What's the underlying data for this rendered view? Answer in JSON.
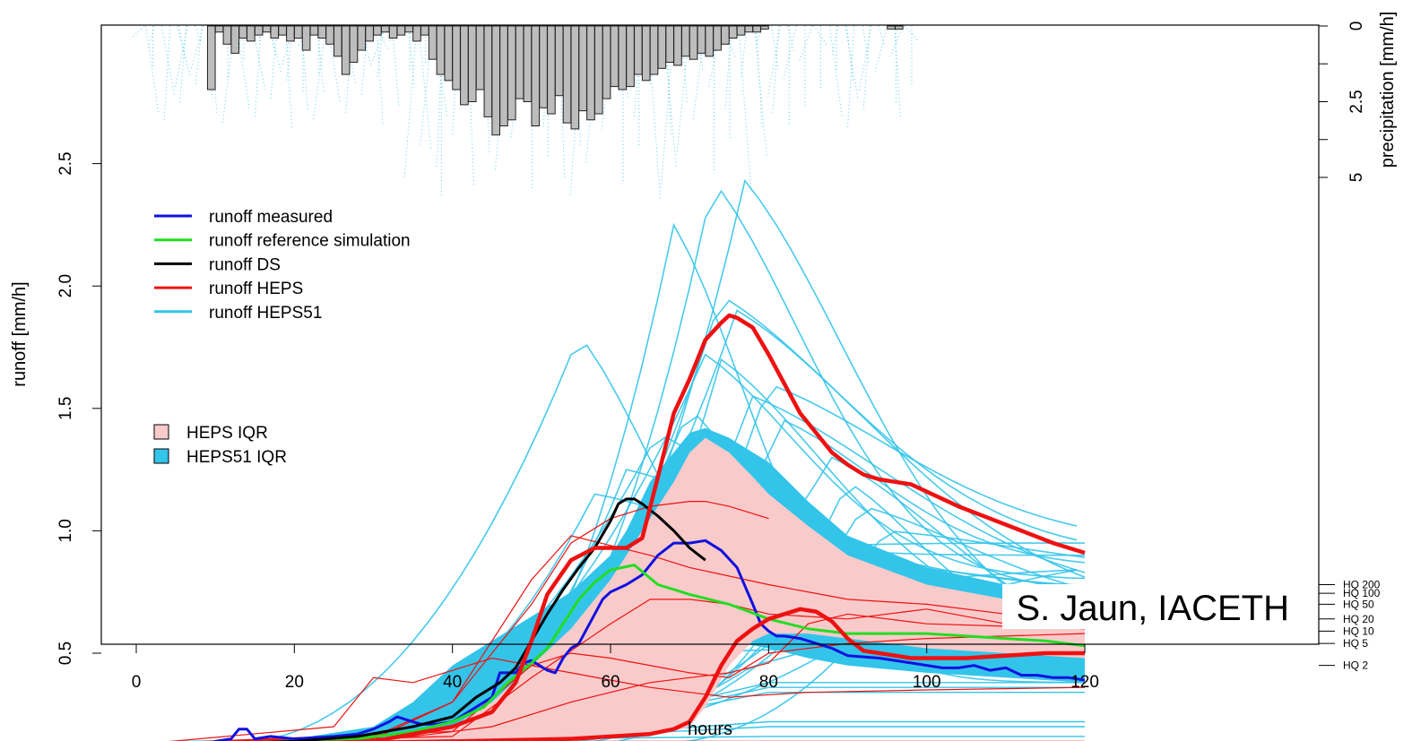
{
  "chart_data": {
    "type": "line",
    "xlabel": "hours",
    "ylabel": "runoff [mm/h]",
    "ylabel_right": "precipitation [mm/h]",
    "xlim": [
      0,
      125
    ],
    "ylim": [
      0,
      2.65
    ],
    "x_ticks": [
      "0",
      "20",
      "40",
      "60",
      "80",
      "100",
      "120"
    ],
    "y_ticks": [
      "0.5",
      "1.0",
      "1.5",
      "2.0",
      "2.5"
    ],
    "precip_ticks": [
      "0",
      "2.5",
      "5"
    ],
    "precip_range": [
      0,
      6
    ],
    "colors": {
      "measured": "#1010e0",
      "reference": "#22dd22",
      "ds": "#000000",
      "heps": "#ee1111",
      "heps51": "#33c4ea",
      "heps_iqr": "#f9caca",
      "heps51_iqr": "#33c4ea",
      "precip_bar": "#bdbdbd"
    },
    "legend_lines": [
      {
        "label": "runoff measured",
        "color": "#1010e0"
      },
      {
        "label": "runoff reference simulation",
        "color": "#22dd22"
      },
      {
        "label": "runoff DS",
        "color": "#000000"
      },
      {
        "label": "runoff HEPS",
        "color": "#ee1111"
      },
      {
        "label": "runoff HEPS51",
        "color": "#33c4ea"
      }
    ],
    "legend_areas": [
      {
        "label": "HEPS IQR",
        "color": "#f9caca"
      },
      {
        "label": "HEPS51 IQR",
        "color": "#33c4ea"
      }
    ],
    "hq_lines": [
      {
        "label": "HQ 200",
        "value": 0.78
      },
      {
        "label": "HQ 100",
        "value": 0.745
      },
      {
        "label": "HQ 50",
        "value": 0.7
      },
      {
        "label": "HQ 20",
        "value": 0.64
      },
      {
        "label": "HQ 10",
        "value": 0.59
      },
      {
        "label": "HQ 5",
        "value": 0.54
      },
      {
        "label": "HQ 2",
        "value": 0.45
      }
    ],
    "series": [
      {
        "name": "runoff measured",
        "x": [
          1,
          4,
          8,
          10,
          12,
          13,
          14,
          15,
          17,
          20,
          25,
          28,
          30,
          32,
          33,
          34,
          36,
          38,
          40,
          42,
          44,
          45,
          46,
          47,
          48,
          49,
          50,
          51,
          52,
          53,
          54,
          55,
          56,
          57,
          58,
          59,
          60,
          62,
          64,
          66,
          68,
          70,
          72,
          74,
          76,
          78,
          79,
          80,
          81,
          82,
          84,
          86,
          88,
          90,
          94,
          98,
          102,
          104,
          106,
          108,
          110,
          112,
          114,
          116,
          118,
          120
        ],
        "y": [
          0.11,
          0.12,
          0.12,
          0.14,
          0.15,
          0.19,
          0.19,
          0.15,
          0.16,
          0.15,
          0.16,
          0.17,
          0.19,
          0.22,
          0.24,
          0.23,
          0.21,
          0.21,
          0.22,
          0.26,
          0.3,
          0.32,
          0.42,
          0.42,
          0.42,
          0.46,
          0.47,
          0.45,
          0.43,
          0.42,
          0.48,
          0.52,
          0.54,
          0.6,
          0.66,
          0.72,
          0.75,
          0.78,
          0.82,
          0.9,
          0.95,
          0.95,
          0.96,
          0.92,
          0.85,
          0.7,
          0.62,
          0.59,
          0.57,
          0.57,
          0.56,
          0.54,
          0.52,
          0.49,
          0.48,
          0.46,
          0.44,
          0.44,
          0.45,
          0.43,
          0.44,
          0.41,
          0.41,
          0.4,
          0.4,
          0.39
        ]
      },
      {
        "name": "runoff reference simulation",
        "x": [
          1,
          10,
          20,
          28,
          35,
          40,
          44,
          47,
          50,
          52,
          54,
          56,
          58,
          60,
          63,
          66,
          70,
          75,
          80,
          85,
          90,
          95,
          100,
          105,
          110,
          115,
          120
        ],
        "y": [
          0.13,
          0.13,
          0.14,
          0.15,
          0.18,
          0.22,
          0.28,
          0.38,
          0.46,
          0.52,
          0.62,
          0.72,
          0.79,
          0.84,
          0.86,
          0.78,
          0.74,
          0.7,
          0.64,
          0.6,
          0.58,
          0.58,
          0.58,
          0.57,
          0.56,
          0.55,
          0.53
        ]
      },
      {
        "name": "runoff DS",
        "x": [
          1,
          10,
          20,
          28,
          35,
          40,
          43,
          46,
          48,
          50,
          52,
          54,
          56,
          58,
          60,
          61,
          62,
          63,
          64,
          66,
          68,
          70,
          72
        ],
        "y": [
          0.13,
          0.13,
          0.14,
          0.16,
          0.2,
          0.24,
          0.32,
          0.38,
          0.44,
          0.55,
          0.66,
          0.76,
          0.85,
          0.93,
          1.04,
          1.11,
          1.13,
          1.13,
          1.11,
          1.06,
          1.0,
          0.93,
          0.88
        ]
      },
      {
        "name": "runoff HEPS",
        "x": [
          1,
          20,
          30,
          40,
          45,
          48,
          50,
          52,
          55,
          58,
          60,
          62,
          64,
          66,
          68,
          70,
          72,
          74,
          75,
          76,
          78,
          80,
          82,
          84,
          86,
          88,
          90,
          92,
          94,
          96,
          98,
          100,
          104,
          108,
          112,
          116,
          120
        ],
        "y": [
          0.13,
          0.13,
          0.14,
          0.2,
          0.26,
          0.38,
          0.55,
          0.74,
          0.88,
          0.93,
          0.93,
          0.93,
          0.97,
          1.22,
          1.48,
          1.62,
          1.78,
          1.85,
          1.88,
          1.87,
          1.83,
          1.72,
          1.6,
          1.48,
          1.4,
          1.32,
          1.27,
          1.23,
          1.21,
          1.2,
          1.19,
          1.16,
          1.1,
          1.05,
          1.0,
          0.95,
          0.91
        ]
      },
      {
        "name": "runoff HEPS (second member)",
        "x": [
          1,
          20,
          40,
          55,
          65,
          68,
          70,
          72,
          74,
          76,
          78,
          80,
          82,
          84,
          86,
          88,
          90,
          92,
          94,
          96,
          98,
          100,
          105,
          110,
          115,
          120
        ],
        "y": [
          0.13,
          0.13,
          0.14,
          0.15,
          0.17,
          0.19,
          0.22,
          0.32,
          0.45,
          0.55,
          0.6,
          0.64,
          0.66,
          0.68,
          0.67,
          0.63,
          0.56,
          0.51,
          0.5,
          0.49,
          0.48,
          0.48,
          0.48,
          0.49,
          0.5,
          0.5
        ]
      }
    ]
  },
  "credit": "S. Jaun, IACETH"
}
